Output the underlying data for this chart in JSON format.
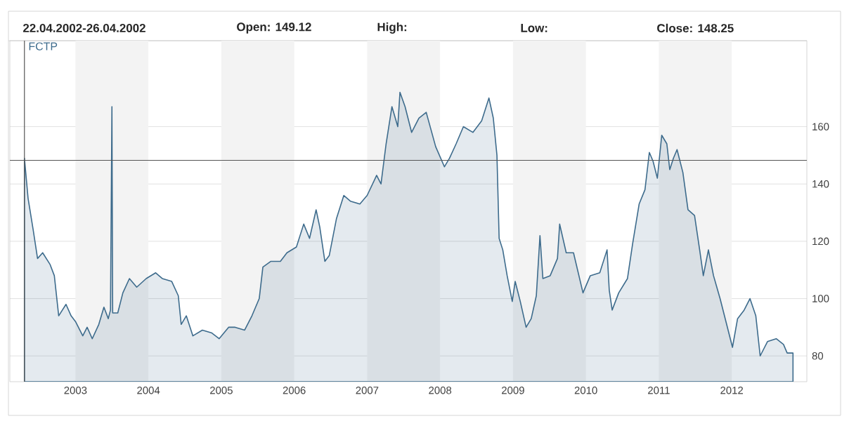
{
  "chart_data": {
    "type": "area",
    "annotations": [
      "22.04.2002-26.04.2002",
      "Open: 149.12",
      "High:",
      "Low:",
      "Close: 148.25"
    ],
    "series": [
      {
        "name": "FCTP",
        "color": "#3d6b8c",
        "x": [
          2002.3,
          2002.35,
          2002.42,
          2002.48,
          2002.55,
          2002.65,
          2002.71,
          2002.77,
          2002.87,
          2002.94,
          2003.0,
          2003.1,
          2003.16,
          2003.23,
          2003.32,
          2003.39,
          2003.45,
          2003.48,
          2003.5,
          2003.51,
          2003.58,
          2003.65,
          2003.74,
          2003.84,
          2003.97,
          2004.1,
          2004.19,
          2004.32,
          2004.41,
          2004.45,
          2004.52,
          2004.61,
          2004.74,
          2004.87,
          2004.97,
          2005.1,
          2005.19,
          2005.32,
          2005.42,
          2005.52,
          2005.57,
          2005.68,
          2005.81,
          2005.9,
          2006.03,
          2006.13,
          2006.21,
          2006.3,
          2006.35,
          2006.42,
          2006.48,
          2006.58,
          2006.68,
          2006.77,
          2006.9,
          2007.0,
          2007.13,
          2007.19,
          2007.26,
          2007.34,
          2007.42,
          2007.45,
          2007.52,
          2007.61,
          2007.71,
          2007.81,
          2007.94,
          2008.06,
          2008.13,
          2008.22,
          2008.32,
          2008.45,
          2008.57,
          2008.67,
          2008.73,
          2008.78,
          2008.81,
          2008.86,
          2008.92,
          2008.99,
          2009.03,
          2009.1,
          2009.18,
          2009.25,
          2009.32,
          2009.37,
          2009.41,
          2009.51,
          2009.61,
          2009.64,
          2009.73,
          2009.83,
          2009.96,
          2010.06,
          2010.19,
          2010.29,
          2010.32,
          2010.36,
          2010.45,
          2010.57,
          2010.64,
          2010.73,
          2010.81,
          2010.87,
          2010.92,
          2010.98,
          2011.04,
          2011.11,
          2011.15,
          2011.2,
          2011.25,
          2011.33,
          2011.4,
          2011.49,
          2011.56,
          2011.61,
          2011.68,
          2011.75,
          2011.84,
          2011.93,
          2012.01,
          2012.08,
          2012.17,
          2012.25,
          2012.33,
          2012.39,
          2012.49,
          2012.61,
          2012.71,
          2012.76,
          2012.84
        ],
        "values": [
          149,
          135,
          124,
          114,
          116,
          112,
          108,
          94,
          98,
          94,
          92,
          87,
          90,
          86,
          91,
          97,
          93,
          96,
          167,
          95,
          95,
          102,
          107,
          104,
          107,
          109,
          107,
          106,
          101,
          91,
          94,
          87,
          89,
          88,
          86,
          90,
          90,
          89,
          94,
          100,
          111,
          113,
          113,
          116,
          118,
          126,
          121,
          131,
          125,
          113,
          115,
          128,
          136,
          134,
          133,
          136,
          143,
          140,
          154,
          167,
          160,
          172,
          167,
          158,
          163,
          165,
          153,
          146,
          149,
          154,
          160,
          158,
          162,
          170,
          163,
          150,
          121,
          117,
          108,
          99,
          106,
          99,
          90,
          93,
          101,
          122,
          107,
          108,
          114,
          126,
          116,
          116,
          102,
          108,
          109,
          117,
          103,
          96,
          102,
          107,
          119,
          133,
          138,
          151,
          148,
          142,
          157,
          154,
          145,
          149,
          152,
          144,
          131,
          129,
          117,
          108,
          117,
          108,
          100,
          91,
          83,
          93,
          96,
          100,
          94,
          80,
          85,
          86,
          84,
          81,
          81
        ]
      }
    ],
    "xlim": [
      2002.1,
      2013.03
    ],
    "ylim": [
      71,
      190
    ],
    "xticks": [
      2003,
      2004,
      2005,
      2006,
      2007,
      2008,
      2009,
      2010,
      2011,
      2012
    ],
    "yticks": [
      80,
      100,
      120,
      140,
      160
    ],
    "grid": "y",
    "legend": false,
    "bands": [
      {
        "axis": "x",
        "from": 2003,
        "to": 2004,
        "color": "#f3f3f3"
      },
      {
        "axis": "x",
        "from": 2005,
        "to": 2006,
        "color": "#f3f3f3"
      },
      {
        "axis": "x",
        "from": 2007,
        "to": 2008,
        "color": "#f3f3f3"
      },
      {
        "axis": "x",
        "from": 2009,
        "to": 2010,
        "color": "#f3f3f3"
      },
      {
        "axis": "x",
        "from": 2011,
        "to": 2012,
        "color": "#f3f3f3"
      }
    ],
    "ref_lines": [
      {
        "axis": "x",
        "value": 2002.3,
        "color": "#555555"
      },
      {
        "axis": "y",
        "value": 148.25,
        "color": "#555555"
      }
    ]
  }
}
